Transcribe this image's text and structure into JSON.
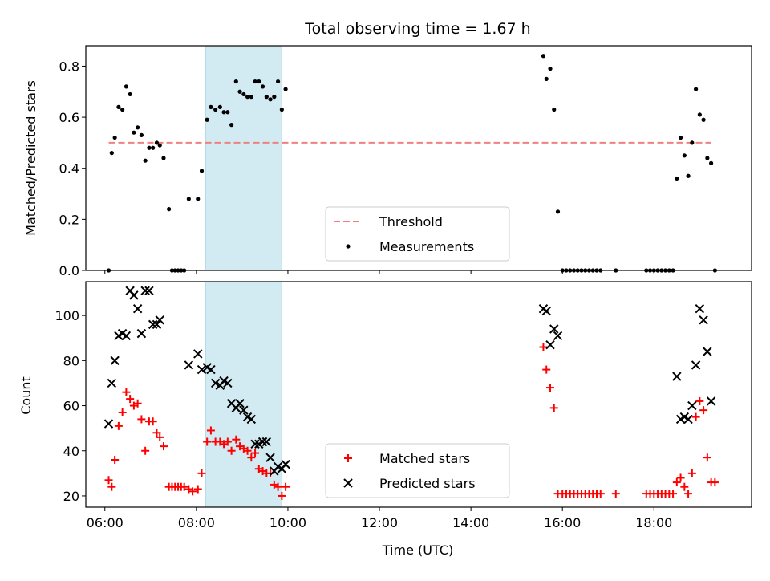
{
  "chart_data": [
    {
      "type": "scatter",
      "title": "Total observing time = 1.67 h",
      "xlabel": "",
      "ylabel": "Matched/Predicted stars",
      "ylim": [
        0,
        0.88
      ],
      "yticks": [
        0.0,
        0.2,
        0.4,
        0.6,
        0.8
      ],
      "ytick_labels": [
        "0.0",
        "0.2",
        "0.4",
        "0.6",
        "0.8"
      ],
      "shaded_interval": [
        "08:12",
        "09:52"
      ],
      "shade_color": "#add8e6",
      "threshold": {
        "name": "Threshold",
        "y": 0.5,
        "x": [
          "06:05",
          "19:15"
        ],
        "color": "#f08080"
      },
      "legend": {
        "location": "lower center",
        "entries": [
          "Threshold",
          "Measurements"
        ]
      },
      "series": [
        {
          "name": "Measurements",
          "color": "#000000",
          "points": [
            [
              "06:05",
              0.0
            ],
            [
              "06:09",
              0.46
            ],
            [
              "06:13",
              0.52
            ],
            [
              "06:18",
              0.64
            ],
            [
              "06:23",
              0.63
            ],
            [
              "06:28",
              0.72
            ],
            [
              "06:33",
              0.69
            ],
            [
              "06:38",
              0.54
            ],
            [
              "06:43",
              0.56
            ],
            [
              "06:48",
              0.53
            ],
            [
              "06:53",
              0.43
            ],
            [
              "06:58",
              0.48
            ],
            [
              "07:03",
              0.48
            ],
            [
              "07:08",
              0.5
            ],
            [
              "07:12",
              0.49
            ],
            [
              "07:17",
              0.44
            ],
            [
              "07:24",
              0.24
            ],
            [
              "07:28",
              0.0
            ],
            [
              "07:32",
              0.0
            ],
            [
              "07:36",
              0.0
            ],
            [
              "07:40",
              0.0
            ],
            [
              "07:44",
              0.0
            ],
            [
              "07:50",
              0.28
            ],
            [
              "08:02",
              0.28
            ],
            [
              "08:07",
              0.39
            ],
            [
              "08:14",
              0.59
            ],
            [
              "08:19",
              0.64
            ],
            [
              "08:25",
              0.63
            ],
            [
              "08:31",
              0.64
            ],
            [
              "08:36",
              0.62
            ],
            [
              "08:41",
              0.62
            ],
            [
              "08:46",
              0.57
            ],
            [
              "08:52",
              0.74
            ],
            [
              "08:57",
              0.7
            ],
            [
              "09:02",
              0.69
            ],
            [
              "09:07",
              0.68
            ],
            [
              "09:12",
              0.68
            ],
            [
              "09:17",
              0.74
            ],
            [
              "09:22",
              0.74
            ],
            [
              "09:27",
              0.72
            ],
            [
              "09:32",
              0.68
            ],
            [
              "09:37",
              0.67
            ],
            [
              "09:42",
              0.68
            ],
            [
              "09:47",
              0.74
            ],
            [
              "09:52",
              0.63
            ],
            [
              "09:57",
              0.71
            ],
            [
              "15:35",
              0.84
            ],
            [
              "15:39",
              0.75
            ],
            [
              "15:44",
              0.79
            ],
            [
              "15:49",
              0.63
            ],
            [
              "15:54",
              0.23
            ],
            [
              "16:00",
              0.0
            ],
            [
              "16:05",
              0.0
            ],
            [
              "16:10",
              0.0
            ],
            [
              "16:15",
              0.0
            ],
            [
              "16:20",
              0.0
            ],
            [
              "16:25",
              0.0
            ],
            [
              "16:30",
              0.0
            ],
            [
              "16:35",
              0.0
            ],
            [
              "16:40",
              0.0
            ],
            [
              "16:45",
              0.0
            ],
            [
              "16:50",
              0.0
            ],
            [
              "17:10",
              0.0
            ],
            [
              "17:50",
              0.0
            ],
            [
              "17:55",
              0.0
            ],
            [
              "18:00",
              0.0
            ],
            [
              "18:05",
              0.0
            ],
            [
              "18:10",
              0.0
            ],
            [
              "18:15",
              0.0
            ],
            [
              "18:20",
              0.0
            ],
            [
              "18:25",
              0.0
            ],
            [
              "18:30",
              0.36
            ],
            [
              "18:35",
              0.52
            ],
            [
              "18:40",
              0.45
            ],
            [
              "18:45",
              0.37
            ],
            [
              "18:50",
              0.5
            ],
            [
              "18:55",
              0.71
            ],
            [
              "19:00",
              0.61
            ],
            [
              "19:05",
              0.59
            ],
            [
              "19:10",
              0.44
            ],
            [
              "19:15",
              0.42
            ],
            [
              "19:20",
              0.0
            ]
          ]
        }
      ]
    },
    {
      "type": "scatter",
      "title": "",
      "xlabel": "Time (UTC)",
      "ylabel": "Count",
      "ylim": [
        15,
        115
      ],
      "yticks": [
        20,
        40,
        60,
        80,
        100
      ],
      "ytick_labels": [
        "20",
        "40",
        "60",
        "80",
        "100"
      ],
      "xticks": [
        "06:00",
        "08:00",
        "10:00",
        "12:00",
        "14:00",
        "16:00",
        "18:00"
      ],
      "xlim": [
        "05:35",
        "20:08"
      ],
      "shaded_interval": [
        "08:12",
        "09:52"
      ],
      "shade_color": "#add8e6",
      "legend": {
        "location": "lower center",
        "entries": [
          "Matched stars",
          "Predicted stars"
        ]
      },
      "series": [
        {
          "name": "Matched stars",
          "marker": "+",
          "color": "#ff0000",
          "points": [
            [
              "06:05",
              27
            ],
            [
              "06:09",
              24
            ],
            [
              "06:13",
              36
            ],
            [
              "06:18",
              51
            ],
            [
              "06:23",
              57
            ],
            [
              "06:28",
              66
            ],
            [
              "06:33",
              63
            ],
            [
              "06:38",
              60
            ],
            [
              "06:43",
              61
            ],
            [
              "06:48",
              54
            ],
            [
              "06:53",
              40
            ],
            [
              "06:58",
              53
            ],
            [
              "07:03",
              53
            ],
            [
              "07:08",
              48
            ],
            [
              "07:12",
              46
            ],
            [
              "07:17",
              42
            ],
            [
              "07:24",
              24
            ],
            [
              "07:28",
              24
            ],
            [
              "07:32",
              24
            ],
            [
              "07:36",
              24
            ],
            [
              "07:40",
              24
            ],
            [
              "07:44",
              24
            ],
            [
              "07:50",
              23
            ],
            [
              "07:55",
              22
            ],
            [
              "08:02",
              23
            ],
            [
              "08:07",
              30
            ],
            [
              "08:14",
              44
            ],
            [
              "08:19",
              49
            ],
            [
              "08:25",
              44
            ],
            [
              "08:31",
              44
            ],
            [
              "08:36",
              43
            ],
            [
              "08:41",
              44
            ],
            [
              "08:46",
              40
            ],
            [
              "08:52",
              45
            ],
            [
              "08:57",
              42
            ],
            [
              "09:02",
              41
            ],
            [
              "09:07",
              40
            ],
            [
              "09:12",
              37
            ],
            [
              "09:17",
              39
            ],
            [
              "09:22",
              32
            ],
            [
              "09:27",
              31
            ],
            [
              "09:32",
              30
            ],
            [
              "09:37",
              30
            ],
            [
              "09:42",
              25
            ],
            [
              "09:47",
              24
            ],
            [
              "09:52",
              20
            ],
            [
              "09:57",
              24
            ],
            [
              "15:35",
              86
            ],
            [
              "15:39",
              76
            ],
            [
              "15:44",
              68
            ],
            [
              "15:49",
              59
            ],
            [
              "15:54",
              21
            ],
            [
              "16:00",
              21
            ],
            [
              "16:05",
              21
            ],
            [
              "16:10",
              21
            ],
            [
              "16:15",
              21
            ],
            [
              "16:20",
              21
            ],
            [
              "16:25",
              21
            ],
            [
              "16:30",
              21
            ],
            [
              "16:35",
              21
            ],
            [
              "16:40",
              21
            ],
            [
              "16:45",
              21
            ],
            [
              "16:50",
              21
            ],
            [
              "17:10",
              21
            ],
            [
              "17:50",
              21
            ],
            [
              "17:55",
              21
            ],
            [
              "18:00",
              21
            ],
            [
              "18:05",
              21
            ],
            [
              "18:10",
              21
            ],
            [
              "18:15",
              21
            ],
            [
              "18:20",
              21
            ],
            [
              "18:25",
              21
            ],
            [
              "18:30",
              26
            ],
            [
              "18:35",
              28
            ],
            [
              "18:40",
              24
            ],
            [
              "18:45",
              21
            ],
            [
              "18:50",
              30
            ],
            [
              "18:55",
              55
            ],
            [
              "19:00",
              62
            ],
            [
              "19:05",
              58
            ],
            [
              "19:10",
              37
            ],
            [
              "19:15",
              26
            ],
            [
              "19:20",
              26
            ]
          ]
        },
        {
          "name": "Predicted stars",
          "marker": "x",
          "color": "#000000",
          "points": [
            [
              "06:05",
              52
            ],
            [
              "06:09",
              70
            ],
            [
              "06:13",
              80
            ],
            [
              "06:18",
              91
            ],
            [
              "06:23",
              92
            ],
            [
              "06:28",
              91
            ],
            [
              "06:33",
              111
            ],
            [
              "06:38",
              109
            ],
            [
              "06:43",
              103
            ],
            [
              "06:48",
              92
            ],
            [
              "06:53",
              111
            ],
            [
              "06:58",
              111
            ],
            [
              "07:03",
              96
            ],
            [
              "07:08",
              96
            ],
            [
              "07:12",
              98
            ],
            [
              "07:50",
              78
            ],
            [
              "08:02",
              83
            ],
            [
              "08:07",
              76
            ],
            [
              "08:14",
              77
            ],
            [
              "08:19",
              76
            ],
            [
              "08:25",
              70
            ],
            [
              "08:31",
              69
            ],
            [
              "08:36",
              71
            ],
            [
              "08:41",
              70
            ],
            [
              "08:46",
              61
            ],
            [
              "08:52",
              59
            ],
            [
              "08:57",
              61
            ],
            [
              "09:02",
              58
            ],
            [
              "09:07",
              55
            ],
            [
              "09:12",
              54
            ],
            [
              "09:17",
              43
            ],
            [
              "09:22",
              43
            ],
            [
              "09:27",
              44
            ],
            [
              "09:32",
              44
            ],
            [
              "09:37",
              37
            ],
            [
              "09:42",
              31
            ],
            [
              "09:47",
              33
            ],
            [
              "09:52",
              32
            ],
            [
              "09:57",
              34
            ],
            [
              "15:35",
              103
            ],
            [
              "15:39",
              102
            ],
            [
              "15:44",
              87
            ],
            [
              "15:49",
              94
            ],
            [
              "15:54",
              91
            ],
            [
              "18:30",
              73
            ],
            [
              "18:35",
              54
            ],
            [
              "18:40",
              55
            ],
            [
              "18:45",
              54
            ],
            [
              "18:50",
              60
            ],
            [
              "18:55",
              78
            ],
            [
              "19:00",
              103
            ],
            [
              "19:05",
              98
            ],
            [
              "19:10",
              84
            ],
            [
              "19:15",
              62
            ]
          ]
        }
      ]
    }
  ]
}
